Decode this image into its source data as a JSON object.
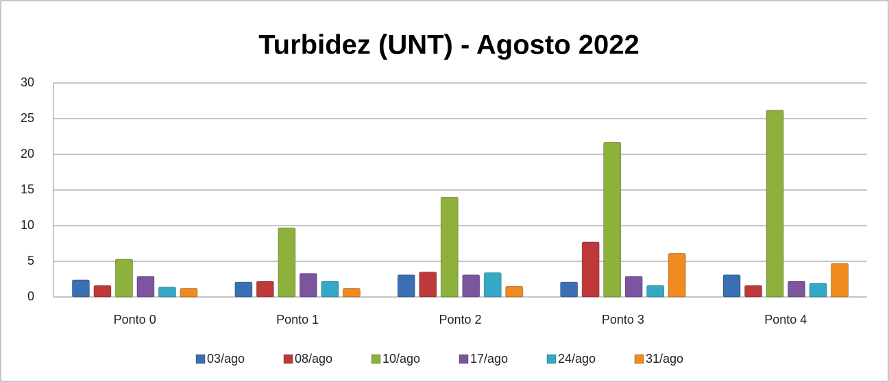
{
  "chart_data": {
    "type": "bar",
    "title": "Turbidez (UNT) - Agosto 2022",
    "categories": [
      "Ponto 0",
      "Ponto 1",
      "Ponto 2",
      "Ponto 3",
      "Ponto 4"
    ],
    "series": [
      {
        "name": "03/ago",
        "color": "#3a6fb5",
        "values": [
          2.4,
          2.1,
          3.1,
          2.1,
          3.1
        ]
      },
      {
        "name": "08/ago",
        "color": "#c0393a",
        "values": [
          1.6,
          2.2,
          3.5,
          7.7,
          1.6
        ]
      },
      {
        "name": "10/ago",
        "color": "#8db13a",
        "values": [
          5.3,
          9.7,
          14.0,
          21.7,
          26.2
        ]
      },
      {
        "name": "17/ago",
        "color": "#7b559f",
        "values": [
          2.9,
          3.3,
          3.1,
          2.9,
          2.2
        ]
      },
      {
        "name": "24/ago",
        "color": "#34a8c6",
        "values": [
          1.4,
          2.2,
          3.4,
          1.6,
          1.9
        ]
      },
      {
        "name": "31/ago",
        "color": "#f08b1d",
        "values": [
          1.2,
          1.2,
          1.5,
          6.1,
          4.7
        ]
      }
    ],
    "ylim": [
      0,
      30
    ],
    "yticks": [
      0,
      5,
      10,
      15,
      20,
      25,
      30
    ],
    "grid": true,
    "legend": "bottom"
  }
}
